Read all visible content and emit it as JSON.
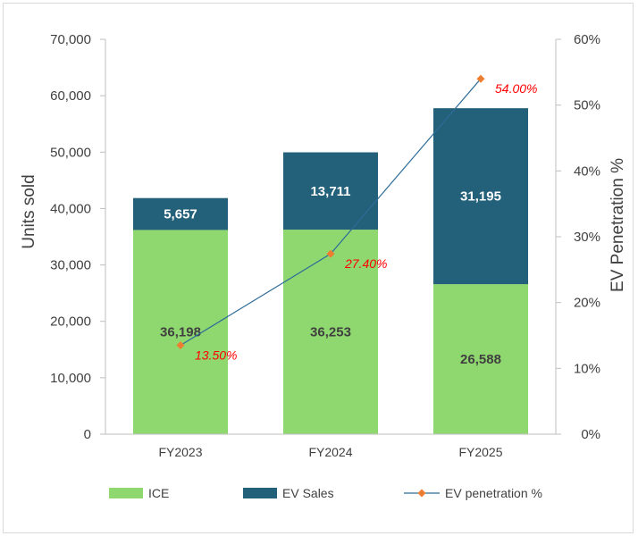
{
  "chart_data": {
    "type": "bar",
    "stacked": true,
    "categories": [
      "FY2023",
      "FY2024",
      "FY2025"
    ],
    "series": [
      {
        "name": "ICE",
        "kind": "bar",
        "axis": "left",
        "values": [
          36198,
          36253,
          26588
        ],
        "labels": [
          "36,198",
          "36,253",
          "26,588"
        ]
      },
      {
        "name": "EV Sales",
        "kind": "bar",
        "axis": "left",
        "values": [
          5657,
          13711,
          31195
        ],
        "labels": [
          "5,657",
          "13,711",
          "31,195"
        ]
      },
      {
        "name": "EV penetration %",
        "kind": "line",
        "axis": "right",
        "values": [
          13.5,
          27.4,
          54.0
        ],
        "labels": [
          "13.50%",
          "27.40%",
          "54.00%"
        ]
      }
    ],
    "ylabel": "Units sold",
    "y2label": "EV Penetration %",
    "ylim": [
      0,
      70000
    ],
    "y2lim": [
      0,
      60
    ],
    "yticks": [
      "0",
      "10,000",
      "20,000",
      "30,000",
      "40,000",
      "50,000",
      "60,000",
      "70,000"
    ],
    "y2ticks": [
      "0%",
      "10%",
      "20%",
      "30%",
      "40%",
      "50%",
      "60%"
    ],
    "legend": {
      "position": "bottom",
      "labels": [
        "ICE",
        "EV Sales",
        "EV penetration %"
      ]
    },
    "grid": false
  },
  "colors": {
    "ice": "#8FD870",
    "ev": "#236079",
    "line": "#2E6C98",
    "marker": "#ED7D31",
    "pct_label": "#FF0000",
    "ice_label": "#404040",
    "ev_label": "#FFFFFF",
    "axis": "#BFBFBF"
  }
}
